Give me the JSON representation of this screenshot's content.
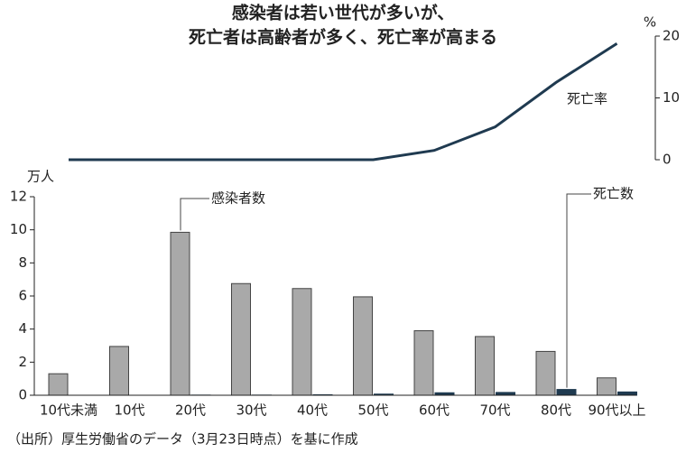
{
  "title": [
    "感染者は若い世代が多いが、",
    "死亡者は高齢者が多く、死亡率が高まる"
  ],
  "note": "（出所）厚生労働省のデータ（3月23日時点）を基に作成",
  "chart_data": [
    {
      "type": "line",
      "ylabel": "%",
      "ylim": [
        0,
        20
      ],
      "yticks": [
        0,
        10,
        20
      ],
      "series": [
        {
          "name": "死亡率",
          "color": "#1f3a50",
          "values": [
            0,
            0,
            0,
            0,
            0,
            0,
            1.5,
            5.3,
            12.5,
            18.8
          ]
        }
      ]
    },
    {
      "type": "bar",
      "ylabel": "万人",
      "ylim": [
        0,
        12
      ],
      "yticks": [
        0,
        2,
        4,
        6,
        8,
        10,
        12
      ],
      "categories": [
        "10代未満",
        "10代",
        "20代",
        "30代",
        "40代",
        "50代",
        "60代",
        "70代",
        "80代",
        "90代以上"
      ],
      "series": [
        {
          "name": "感染者数",
          "color": "#a9a9a9",
          "values": [
            1.3,
            2.95,
            9.85,
            6.75,
            6.45,
            5.95,
            3.9,
            3.55,
            2.65,
            1.05
          ]
        },
        {
          "name": "死亡数",
          "color": "#1f3a50",
          "values": [
            0,
            0,
            0.01,
            0.01,
            0.03,
            0.07,
            0.15,
            0.17,
            0.35,
            0.2
          ]
        }
      ]
    }
  ]
}
